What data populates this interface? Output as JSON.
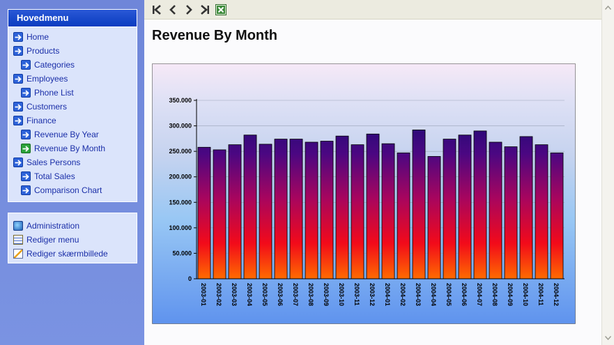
{
  "sidebar": {
    "title": "Hovedmenu",
    "items": [
      {
        "label": "Home"
      },
      {
        "label": "Products"
      },
      {
        "label": "Categories"
      },
      {
        "label": "Employees"
      },
      {
        "label": "Phone List"
      },
      {
        "label": "Customers"
      },
      {
        "label": "Finance"
      },
      {
        "label": "Revenue By Year"
      },
      {
        "label": "Revenue By Month"
      },
      {
        "label": "Sales Persons"
      },
      {
        "label": "Total Sales"
      },
      {
        "label": "Comparison Chart"
      }
    ],
    "admin": [
      {
        "label": "Administration"
      },
      {
        "label": "Rediger menu"
      },
      {
        "label": "Rediger skærmbillede"
      }
    ]
  },
  "toolbar": {
    "first_icon": "first-page-icon",
    "prev_icon": "previous-page-icon",
    "next_icon": "next-page-icon",
    "last_icon": "last-page-icon",
    "excel_icon": "excel-export-icon"
  },
  "page": {
    "title": "Revenue By Month"
  },
  "colors": {
    "sidebar_bg": "#7489dd",
    "menu_bg": "#dbe4fb",
    "link": "#1a2ea8",
    "bar_top": "#0b0b6e",
    "bar_bottom": "#ff5a00"
  },
  "chart_data": {
    "type": "bar",
    "title": "",
    "xlabel": "",
    "ylabel": "",
    "ylim": [
      0,
      350000
    ],
    "yticks": [
      "0",
      "50.000",
      "100.000",
      "150.000",
      "200.000",
      "250.000",
      "300.000",
      "350.000"
    ],
    "categories": [
      "2003-01",
      "2003-02",
      "2003-03",
      "2003-04",
      "2003-05",
      "2003-06",
      "2003-07",
      "2003-08",
      "2003-09",
      "2003-10",
      "2003-11",
      "2003-12",
      "2004-01",
      "2004-02",
      "2004-03",
      "2004-04",
      "2004-05",
      "2004-06",
      "2004-07",
      "2004-08",
      "2004-09",
      "2004-10",
      "2004-11",
      "2004-12"
    ],
    "values": [
      258000,
      253000,
      263000,
      282000,
      264000,
      274000,
      274000,
      268000,
      270000,
      280000,
      263000,
      284000,
      265000,
      247000,
      292000,
      240000,
      274000,
      282000,
      290000,
      268000,
      259000,
      279000,
      263000,
      247000
    ]
  }
}
